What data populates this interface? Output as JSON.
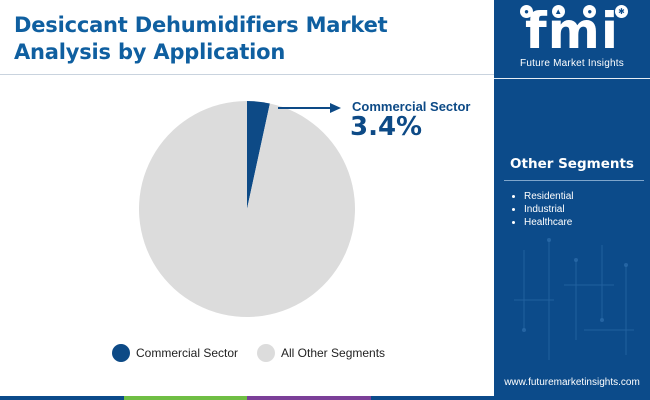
{
  "title": "Desiccant Dehumidifiers Market Analysis by Application",
  "callout": {
    "label": "Commercial Sector",
    "value": "3.4%"
  },
  "chart_data": {
    "type": "pie",
    "title": "Desiccant Dehumidifiers Market Analysis by Application",
    "slices": [
      {
        "label": "Commercial Sector",
        "value": 3.4,
        "color": "#0d4a86"
      },
      {
        "label": "All Other Segments",
        "value": 96.6,
        "color": "#dcdcdc"
      }
    ],
    "legend_position": "bottom"
  },
  "legend": [
    {
      "label": "Commercial Sector",
      "color": "#0d4a86"
    },
    {
      "label": "All Other Segments",
      "color": "#dcdcdc"
    }
  ],
  "sidebar": {
    "logo_text": "fmi",
    "logo_subtitle": "Future Market Insights",
    "segments_title": "Other Segments",
    "segments": [
      "Residential",
      "Industrial",
      "Healthcare"
    ],
    "url": "www.futuremarketinsights.com"
  },
  "colors": {
    "title": "#0f5fa0",
    "accent": "#0d4a86",
    "panel": "#0c4b8a",
    "bottom_bar": [
      "#0c4b8a",
      "#6fbe44",
      "#7b3f98",
      "#0c4b8a"
    ]
  },
  "icons": [
    "globe-icon",
    "chart-icon",
    "person-icon",
    "gear-icon"
  ]
}
